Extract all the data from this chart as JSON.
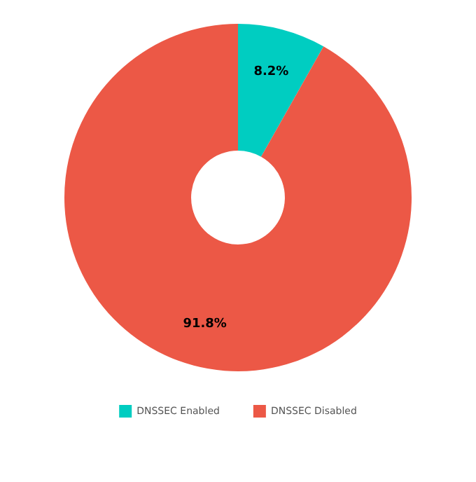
{
  "chart_data": {
    "type": "donut",
    "categories": [
      "DNSSEC Enabled",
      "DNSSEC Disabled"
    ],
    "values": [
      8.2,
      91.8
    ],
    "colors": [
      "#00cdc1",
      "#ec5846"
    ],
    "value_labels": [
      "8.2%",
      "91.8%"
    ],
    "legend": "bottom"
  }
}
